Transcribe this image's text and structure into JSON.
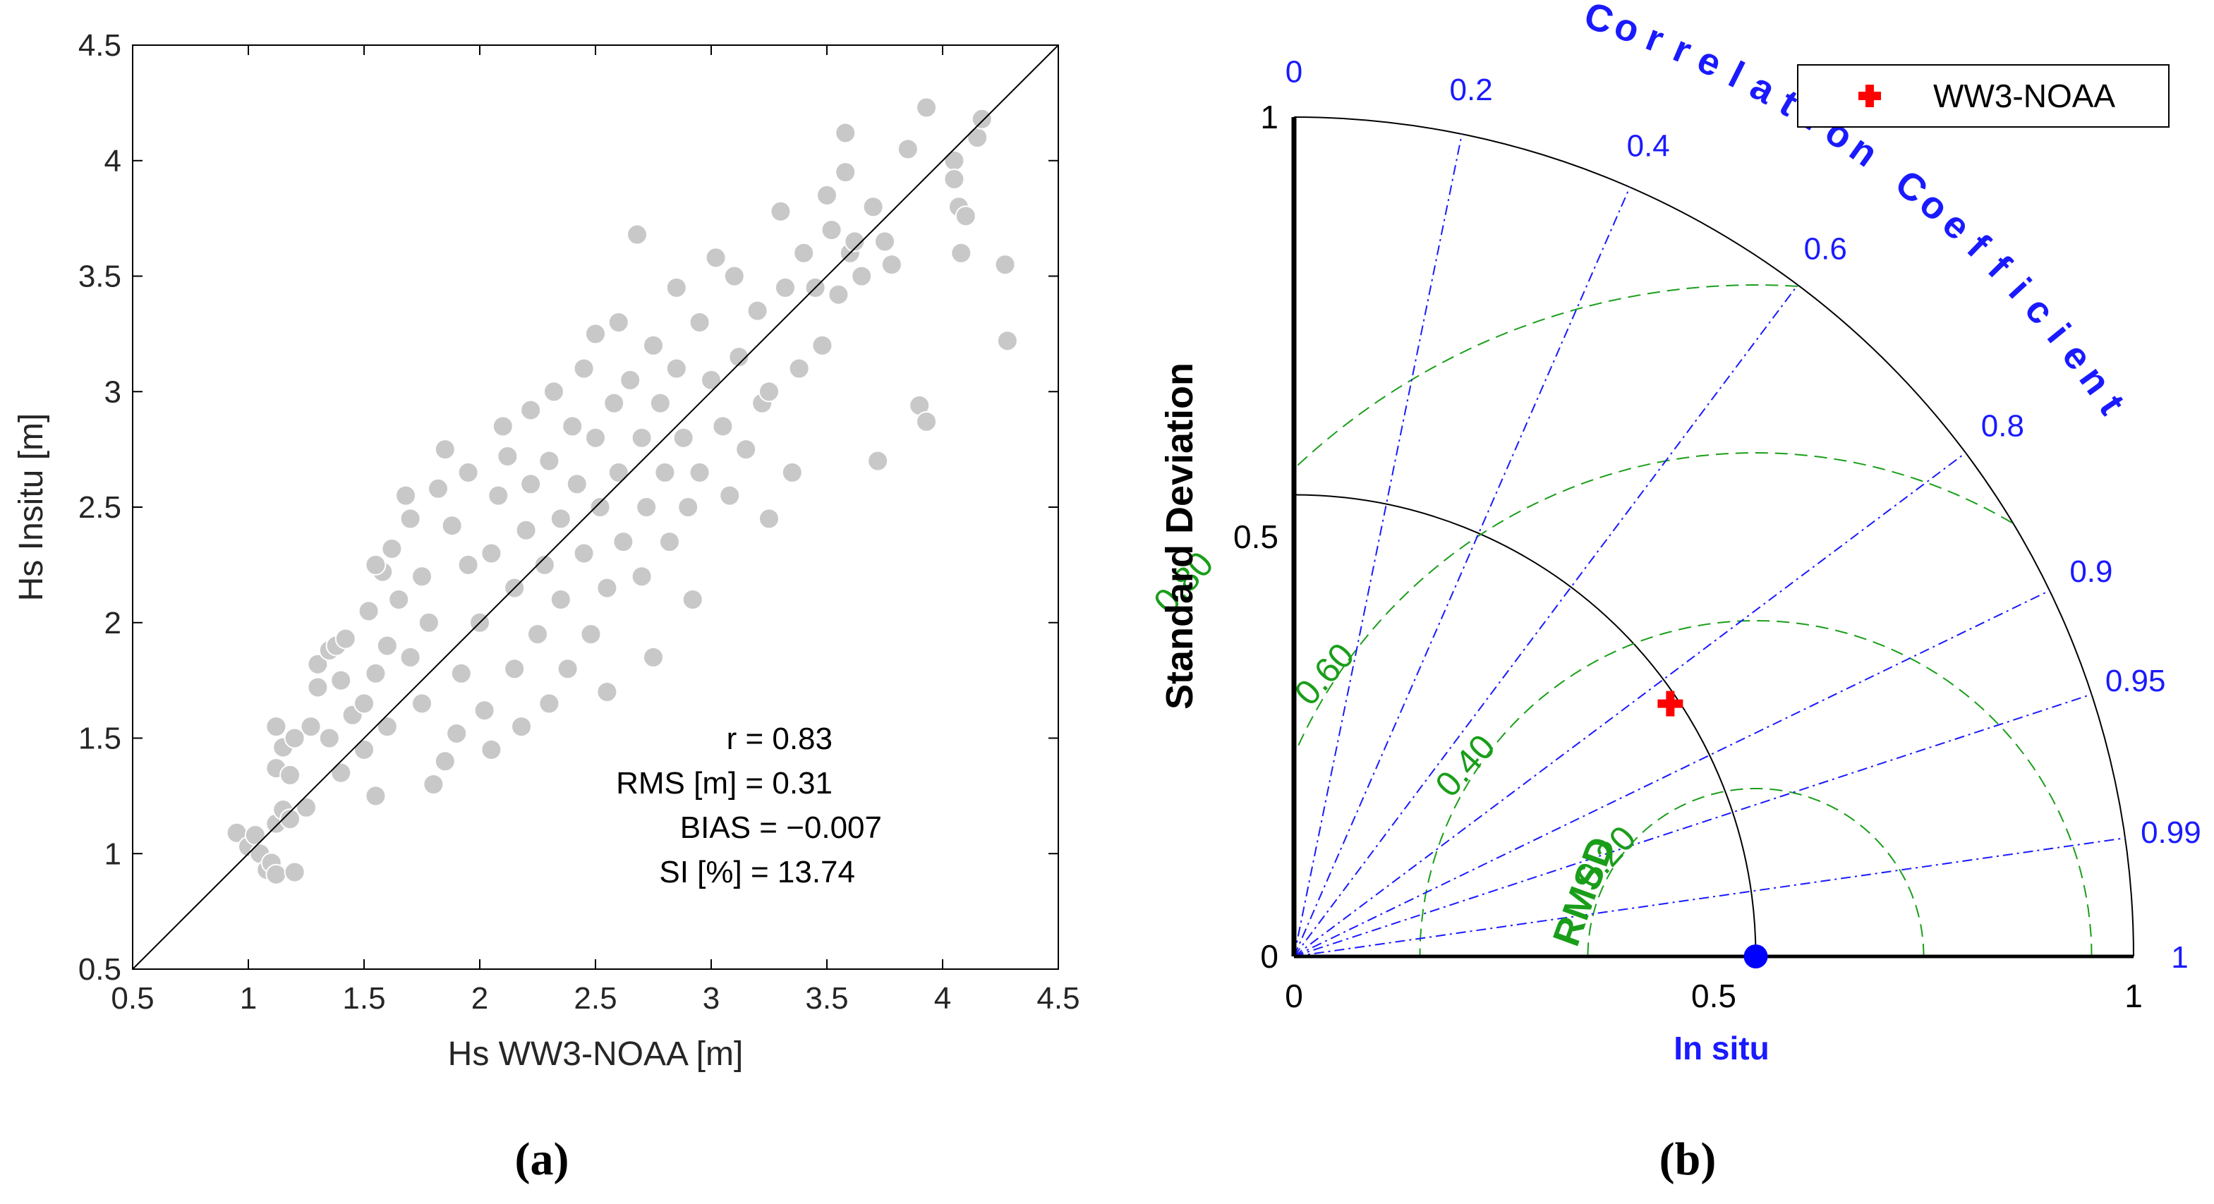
{
  "chart_data": [
    {
      "type": "scatter",
      "panel_label": "(a)",
      "xlabel": "Hs WW3-NOAA [m]",
      "ylabel": "Hs Insitu [m]",
      "xlim": [
        0.5,
        4.5
      ],
      "ylim": [
        0.5,
        4.5
      ],
      "xticks": [
        "0.5",
        "1",
        "1.5",
        "2",
        "2.5",
        "3",
        "3.5",
        "4",
        "4.5"
      ],
      "yticks": [
        "0.5",
        "1",
        "1.5",
        "2",
        "2.5",
        "3",
        "3.5",
        "4",
        "4.5"
      ],
      "grid": false,
      "marker_color": "#c8c8c8",
      "reference_line": {
        "from": [
          0.5,
          0.5
        ],
        "to": [
          4.5,
          4.5
        ],
        "color": "#000000"
      },
      "stats": [
        "r = 0.83",
        "RMS [m] = 0.31",
        "BIAS = −0.007",
        "SI [%] = 13.74"
      ],
      "points": [
        [
          0.95,
          1.09
        ],
        [
          1.0,
          1.03
        ],
        [
          1.03,
          1.08
        ],
        [
          1.05,
          1.0
        ],
        [
          1.08,
          0.93
        ],
        [
          1.1,
          0.96
        ],
        [
          1.12,
          0.91
        ],
        [
          1.2,
          0.92
        ],
        [
          1.12,
          1.13
        ],
        [
          1.15,
          1.19
        ],
        [
          1.18,
          1.15
        ],
        [
          1.25,
          1.2
        ],
        [
          1.12,
          1.37
        ],
        [
          1.15,
          1.46
        ],
        [
          1.12,
          1.55
        ],
        [
          1.18,
          1.34
        ],
        [
          1.2,
          1.5
        ],
        [
          1.27,
          1.55
        ],
        [
          1.3,
          1.82
        ],
        [
          1.35,
          1.88
        ],
        [
          1.3,
          1.72
        ],
        [
          1.38,
          1.9
        ],
        [
          1.42,
          1.93
        ],
        [
          1.4,
          1.75
        ],
        [
          1.45,
          1.6
        ],
        [
          1.35,
          1.5
        ],
        [
          1.4,
          1.35
        ],
        [
          1.5,
          1.45
        ],
        [
          1.55,
          1.25
        ],
        [
          1.6,
          1.55
        ],
        [
          1.5,
          1.65
        ],
        [
          1.55,
          1.78
        ],
        [
          1.6,
          1.9
        ],
        [
          1.52,
          2.05
        ],
        [
          1.58,
          2.22
        ],
        [
          1.55,
          2.25
        ],
        [
          1.65,
          2.1
        ],
        [
          1.62,
          2.32
        ],
        [
          1.7,
          1.85
        ],
        [
          1.7,
          2.45
        ],
        [
          1.68,
          2.55
        ],
        [
          1.75,
          2.2
        ],
        [
          1.75,
          1.65
        ],
        [
          1.78,
          2.0
        ],
        [
          1.82,
          2.58
        ],
        [
          1.85,
          1.4
        ],
        [
          1.8,
          1.3
        ],
        [
          1.9,
          1.52
        ],
        [
          1.92,
          1.78
        ],
        [
          1.95,
          2.25
        ],
        [
          1.88,
          2.42
        ],
        [
          1.95,
          2.65
        ],
        [
          1.85,
          2.75
        ],
        [
          2.0,
          2.0
        ],
        [
          2.02,
          1.62
        ],
        [
          2.05,
          1.45
        ],
        [
          2.05,
          2.3
        ],
        [
          2.08,
          2.55
        ],
        [
          2.1,
          2.85
        ],
        [
          2.12,
          2.72
        ],
        [
          2.15,
          2.15
        ],
        [
          2.15,
          1.8
        ],
        [
          2.18,
          1.55
        ],
        [
          2.2,
          2.4
        ],
        [
          2.22,
          2.6
        ],
        [
          2.22,
          2.92
        ],
        [
          2.25,
          1.95
        ],
        [
          2.28,
          2.25
        ],
        [
          2.3,
          2.7
        ],
        [
          2.3,
          1.65
        ],
        [
          2.32,
          3.0
        ],
        [
          2.35,
          2.45
        ],
        [
          2.35,
          2.1
        ],
        [
          2.38,
          1.8
        ],
        [
          2.4,
          2.85
        ],
        [
          2.42,
          2.6
        ],
        [
          2.45,
          3.1
        ],
        [
          2.45,
          2.3
        ],
        [
          2.48,
          1.95
        ],
        [
          2.5,
          2.8
        ],
        [
          2.5,
          3.25
        ],
        [
          2.52,
          2.5
        ],
        [
          2.55,
          2.15
        ],
        [
          2.55,
          1.7
        ],
        [
          2.58,
          2.95
        ],
        [
          2.6,
          3.3
        ],
        [
          2.6,
          2.65
        ],
        [
          2.62,
          2.35
        ],
        [
          2.65,
          3.05
        ],
        [
          2.68,
          3.68
        ],
        [
          2.7,
          2.8
        ],
        [
          2.7,
          2.2
        ],
        [
          2.72,
          2.5
        ],
        [
          2.75,
          3.2
        ],
        [
          2.75,
          1.85
        ],
        [
          2.78,
          2.95
        ],
        [
          2.8,
          2.65
        ],
        [
          2.82,
          2.35
        ],
        [
          2.85,
          3.1
        ],
        [
          2.85,
          3.45
        ],
        [
          2.88,
          2.8
        ],
        [
          2.9,
          2.5
        ],
        [
          2.92,
          2.1
        ],
        [
          2.95,
          3.3
        ],
        [
          2.95,
          2.65
        ],
        [
          3.0,
          3.05
        ],
        [
          3.02,
          3.58
        ],
        [
          3.05,
          2.85
        ],
        [
          3.08,
          2.55
        ],
        [
          3.1,
          3.5
        ],
        [
          3.12,
          3.15
        ],
        [
          3.15,
          2.75
        ],
        [
          3.2,
          3.35
        ],
        [
          3.22,
          2.95
        ],
        [
          3.25,
          2.45
        ],
        [
          3.25,
          3.0
        ],
        [
          3.3,
          3.78
        ],
        [
          3.32,
          3.45
        ],
        [
          3.35,
          2.65
        ],
        [
          3.38,
          3.1
        ],
        [
          3.4,
          3.6
        ],
        [
          3.45,
          3.45
        ],
        [
          3.48,
          3.2
        ],
        [
          3.5,
          3.85
        ],
        [
          3.52,
          3.7
        ],
        [
          3.55,
          3.42
        ],
        [
          3.58,
          3.95
        ],
        [
          3.6,
          3.6
        ],
        [
          3.58,
          4.12
        ],
        [
          3.62,
          3.65
        ],
        [
          3.65,
          3.5
        ],
        [
          3.7,
          3.8
        ],
        [
          3.72,
          2.7
        ],
        [
          3.75,
          3.65
        ],
        [
          3.78,
          3.55
        ],
        [
          3.85,
          4.05
        ],
        [
          3.9,
          2.94
        ],
        [
          3.93,
          2.87
        ],
        [
          3.93,
          4.23
        ],
        [
          4.05,
          4.0
        ],
        [
          4.05,
          3.92
        ],
        [
          4.07,
          3.8
        ],
        [
          4.08,
          3.6
        ],
        [
          4.1,
          3.76
        ],
        [
          4.15,
          4.1
        ],
        [
          4.17,
          4.18
        ],
        [
          4.27,
          3.55
        ],
        [
          4.28,
          3.22
        ]
      ]
    },
    {
      "type": "taylor",
      "panel_label": "(b)",
      "xlabel": "In situ",
      "ylabel": "Standard Deviation",
      "correlation_label": "Correlation Coefficient",
      "rmsd_label": "RMSD",
      "std_range": [
        0,
        1
      ],
      "std_ticks": [
        "0",
        "0.5",
        "1"
      ],
      "correlation_ticks": [
        {
          "value": 0,
          "label": "0"
        },
        {
          "value": 0.2,
          "label": "0.2"
        },
        {
          "value": 0.4,
          "label": "0.4"
        },
        {
          "value": 0.6,
          "label": "0.6"
        },
        {
          "value": 0.8,
          "label": "0.8"
        },
        {
          "value": 0.9,
          "label": "0.9"
        },
        {
          "value": 0.95,
          "label": "0.95"
        },
        {
          "value": 0.99,
          "label": "0.99"
        },
        {
          "value": 1,
          "label": "1"
        }
      ],
      "rmsd_contours": [
        {
          "value": 0.2,
          "label": "0.20"
        },
        {
          "value": 0.4,
          "label": "0.40"
        },
        {
          "value": 0.6,
          "label": "0.60"
        },
        {
          "value": 0.8,
          "label": "0.80"
        }
      ],
      "reference": {
        "name": "In situ",
        "std": 0.55,
        "color": "#0000ff"
      },
      "models": [
        {
          "name": "WW3-NOAA",
          "std": 0.54,
          "correlation": 0.83,
          "color": "#ff0000"
        }
      ],
      "legend": {
        "position": "top-right",
        "entries": [
          "WW3-NOAA"
        ]
      },
      "colors": {
        "correlation": "#1a1aff",
        "rmsd": "#1a9e1a",
        "std_arc": "#000000"
      }
    }
  ]
}
